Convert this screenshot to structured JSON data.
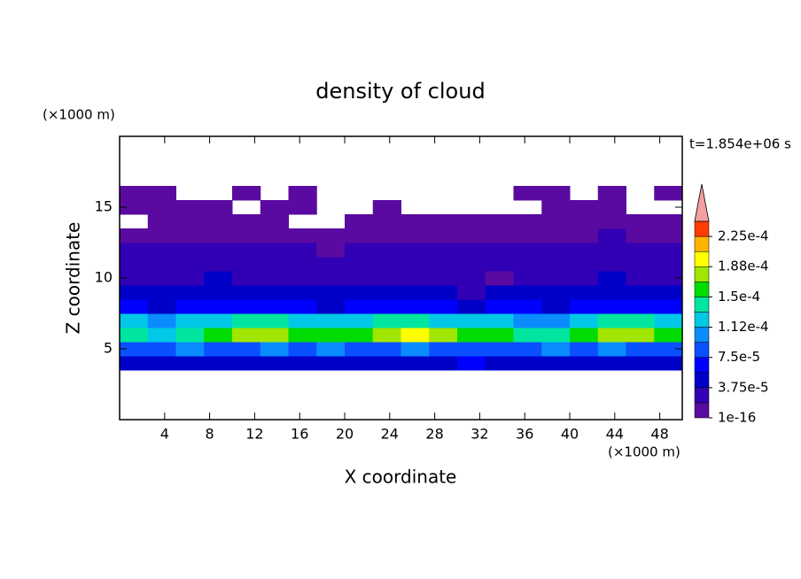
{
  "chart_data": {
    "type": "contour",
    "title": "density of cloud",
    "xlabel": "X coordinate",
    "ylabel": "Z coordinate",
    "x_unit": "(×1000 m)",
    "y_unit": "(×1000 m)",
    "time_label": "t=1.854e+06 s",
    "xlim": [
      0,
      50
    ],
    "ylim": [
      0,
      20
    ],
    "xticks": [
      4,
      8,
      12,
      16,
      20,
      24,
      28,
      32,
      36,
      40,
      44,
      48
    ],
    "yticks": [
      5,
      10,
      15
    ],
    "x": [
      1.25,
      3.75,
      6.25,
      8.75,
      11.25,
      13.75,
      16.25,
      18.75,
      21.25,
      23.75,
      26.25,
      28.75,
      31.25,
      33.75,
      36.25,
      38.75,
      41.25,
      43.75,
      46.25,
      48.75
    ],
    "y": [
      4,
      5,
      6,
      7,
      8,
      9,
      10,
      11,
      12,
      13,
      14,
      15,
      16
    ],
    "z": [
      [
        4e-05,
        4.5e-05,
        4e-05,
        5e-05,
        4e-05,
        4.5e-05,
        4e-05,
        5e-05,
        4e-05,
        4.5e-05,
        4e-05,
        5e-05,
        6e-05,
        4.5e-05,
        4e-05,
        5e-05,
        4e-05,
        4.5e-05,
        4e-05,
        4.5e-05
      ],
      [
        9e-05,
        8e-05,
        0.0001,
        9e-05,
        8.5e-05,
        9.5e-05,
        8e-05,
        0.0001,
        9e-05,
        8.5e-05,
        9.5e-05,
        9e-05,
        8e-05,
        8.5e-05,
        9e-05,
        9.5e-05,
        8.5e-05,
        0.0001,
        9e-05,
        8.5e-05
      ],
      [
        0.000135,
        0.00013,
        0.000145,
        0.00016,
        0.000175,
        0.00017,
        0.000165,
        0.000155,
        0.00016,
        0.00018,
        0.00019,
        0.000175,
        0.00015,
        0.000155,
        0.000145,
        0.00014,
        0.00016,
        0.000185,
        0.00018,
        0.000165
      ],
      [
        0.00012,
        0.00011,
        0.000115,
        0.00013,
        0.00014,
        0.000135,
        0.000125,
        0.00012,
        0.00013,
        0.00014,
        0.000145,
        0.00013,
        0.000125,
        0.00012,
        0.00011,
        0.000105,
        0.000125,
        0.00014,
        0.000135,
        0.00013
      ],
      [
        6e-05,
        5.5e-05,
        6.5e-05,
        7e-05,
        6e-05,
        6.5e-05,
        6e-05,
        5.5e-05,
        6e-05,
        7e-05,
        6.5e-05,
        6e-05,
        5.5e-05,
        6e-05,
        6.5e-05,
        5.5e-05,
        6e-05,
        7e-05,
        6.5e-05,
        6e-05
      ],
      [
        4.5e-05,
        4e-05,
        5e-05,
        4.5e-05,
        4e-05,
        4.5e-05,
        5e-05,
        4e-05,
        4.5e-05,
        4e-05,
        4.5e-05,
        4e-05,
        3.5e-05,
        4e-05,
        4.5e-05,
        4e-05,
        4.5e-05,
        5e-05,
        4e-05,
        4.5e-05
      ],
      [
        3.5e-05,
        3e-05,
        3.5e-05,
        4e-05,
        3e-05,
        3.5e-05,
        3e-05,
        3.5e-05,
        3e-05,
        3.5e-05,
        3e-05,
        3.5e-05,
        2e-05,
        1.5e-05,
        3e-05,
        3.5e-05,
        3e-05,
        4e-05,
        3.5e-05,
        3e-05
      ],
      [
        3e-05,
        2.5e-05,
        3e-05,
        2.5e-05,
        3e-05,
        2.5e-05,
        2.5e-05,
        3e-05,
        2.5e-05,
        3e-05,
        2.5e-05,
        3e-05,
        2e-05,
        2.5e-05,
        3e-05,
        2.5e-05,
        3e-05,
        2.5e-05,
        3e-05,
        2.5e-05
      ],
      [
        2.5e-05,
        2e-05,
        2.5e-05,
        2e-05,
        2e-05,
        2.5e-05,
        2e-05,
        1.5e-05,
        2e-05,
        2.5e-05,
        2e-05,
        2e-05,
        2.5e-05,
        2e-05,
        2e-05,
        2.5e-05,
        2e-05,
        2e-05,
        2.5e-05,
        2e-05
      ],
      [
        1e-05,
        1.5e-05,
        1e-05,
        1.5e-05,
        1e-05,
        1e-05,
        1.5e-05,
        1e-05,
        1e-05,
        1.5e-05,
        1e-05,
        1.5e-05,
        1e-05,
        1e-05,
        1.5e-05,
        1e-05,
        1.5e-05,
        2e-05,
        1.5e-05,
        1e-05
      ],
      [
        null,
        8e-06,
        1e-05,
        8e-06,
        1e-05,
        8e-06,
        null,
        null,
        8e-06,
        1e-05,
        8e-06,
        8e-06,
        1e-05,
        8e-06,
        1e-05,
        8e-06,
        1e-05,
        8e-06,
        1e-05,
        8e-06
      ],
      [
        5e-06,
        5e-06,
        5e-06,
        5e-06,
        null,
        5e-06,
        5e-06,
        null,
        null,
        5e-06,
        null,
        null,
        null,
        null,
        null,
        5e-06,
        5e-06,
        5e-06,
        null,
        null
      ],
      [
        5e-06,
        5e-06,
        null,
        null,
        5e-06,
        null,
        5e-06,
        null,
        null,
        null,
        null,
        null,
        null,
        null,
        5e-06,
        5e-06,
        null,
        5e-06,
        null,
        5e-06
      ]
    ],
    "colorbar": {
      "levels": [
        1e-16,
        1.875e-05,
        3.75e-05,
        5.625e-05,
        7.5e-05,
        9.375e-05,
        0.0001125,
        0.00013125,
        0.00015,
        0.00016875,
        0.0001875,
        0.00020625,
        0.000225,
        0.00024375
      ],
      "colors": [
        "#5a0aa0",
        "#3200b4",
        "#0000c8",
        "#0000ff",
        "#0a50ff",
        "#0a8cff",
        "#00c8e6",
        "#00e6a0",
        "#00dc00",
        "#a0e600",
        "#ffff00",
        "#ffb400",
        "#ff3c00"
      ],
      "extend": "max",
      "over_color": "#f4a0a0",
      "ticks": [
        {
          "value": 1e-16,
          "label": "1e-16"
        },
        {
          "value": 3.75e-05,
          "label": "3.75e-5"
        },
        {
          "value": 7.5e-05,
          "label": "7.5e-5"
        },
        {
          "value": 0.0001125,
          "label": "1.12e-4"
        },
        {
          "value": 0.00015,
          "label": "1.5e-4"
        },
        {
          "value": 0.0001875,
          "label": "1.88e-4"
        },
        {
          "value": 0.000225,
          "label": "2.25e-4"
        }
      ]
    }
  }
}
